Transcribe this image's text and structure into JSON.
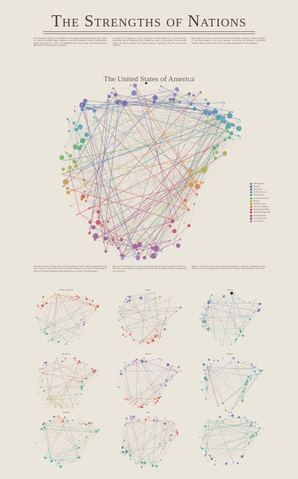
{
  "header": {
    "title": "The Strengths of Nations",
    "intro": [
      "The strengths of nations. An illustration of the relative emphasis placed by each nation on a range of scientific fields, mapped across the landscape of science. Fields that are heavily published by a nation are highlighted with large nodes, while less prominent fields fade into the background network.",
      "A network of disciplines is drawn using the co-citation patterns of journal articles. Disciplines that are frequently cited together sit close to one another, forming broad regions of related research: the physical sciences, engineering, the life sciences and medicine.",
      "Each node is sized and coloured according to the number of papers a nation publishes in that field relative to the world average. Links show the strongest connections between fields, revealing how a nation's research specialisms cluster together."
    ]
  },
  "main": {
    "subtitle": "The United States of America"
  },
  "legend": {
    "items": [
      {
        "label": "Mathematics",
        "color": "#8a7fb8"
      },
      {
        "label": "Physics",
        "color": "#6d6aa8"
      },
      {
        "label": "Chemistry",
        "color": "#5a88b0"
      },
      {
        "label": "Earth Sciences",
        "color": "#4ea5a8"
      },
      {
        "label": "Engineering",
        "color": "#5aa47a"
      },
      {
        "label": "Computer Science",
        "color": "#7fb060"
      },
      {
        "label": "Biology",
        "color": "#b0ad58"
      },
      {
        "label": "Biotechnology",
        "color": "#c99a4e"
      },
      {
        "label": "Infectious Disease",
        "color": "#d27e45"
      },
      {
        "label": "Medical Specialties",
        "color": "#cf5a48"
      },
      {
        "label": "Health Professionals",
        "color": "#c24a55"
      },
      {
        "label": "Brain Research",
        "color": "#b54f78"
      },
      {
        "label": "Social Sciences",
        "color": "#9a5a90"
      },
      {
        "label": "Humanities",
        "color": "#a68ac0"
      }
    ]
  },
  "lower": {
    "descriptions": [
      "The figures below compare the research strengths of other nations against the same map of science. Each nation shows a distinct fingerprint, with some concentrating on medicine and the life sciences while others focus on physics and engineering.",
      "Nations in the middle column show a balanced profile across many regions of the map, with strong links between the physical sciences and the applied fields of engineering and computing.",
      "Nations in the final column place particular emphasis on chemistry, materials and the physical sciences, reflected in the dense clusters of large nodes at the top of each map."
    ],
    "maps": [
      {
        "label": "United Kingdom",
        "palette": [
          "#d27e45",
          "#cf5a48",
          "#6d6aa8",
          "#5aa47a"
        ]
      },
      {
        "label": "Japan",
        "palette": [
          "#6d6aa8",
          "#5a88b0",
          "#8a7fb8",
          "#cf5a48"
        ]
      },
      {
        "label": "China",
        "palette": [
          "#5a88b0",
          "#6d6aa8",
          "#4ea5a8",
          "#5aa47a"
        ]
      },
      {
        "label": "Germany",
        "palette": [
          "#6d6aa8",
          "#cf5a48",
          "#5aa47a",
          "#b0ad58"
        ]
      },
      {
        "label": "France",
        "palette": [
          "#8a7fb8",
          "#6d6aa8",
          "#5a88b0",
          "#cf5a48"
        ]
      },
      {
        "label": "Russia",
        "palette": [
          "#6d6aa8",
          "#5a88b0",
          "#4ea5a8",
          "#7fb060"
        ]
      },
      {
        "label": "Canada",
        "palette": [
          "#cf5a48",
          "#5aa47a",
          "#b0ad58",
          "#4ea5a8"
        ]
      },
      {
        "label": "Italy",
        "palette": [
          "#8a7fb8",
          "#cf5a48",
          "#6d6aa8",
          "#5aa47a"
        ]
      },
      {
        "label": "India",
        "palette": [
          "#5a88b0",
          "#5aa47a",
          "#4ea5a8",
          "#6d6aa8"
        ]
      }
    ]
  }
}
